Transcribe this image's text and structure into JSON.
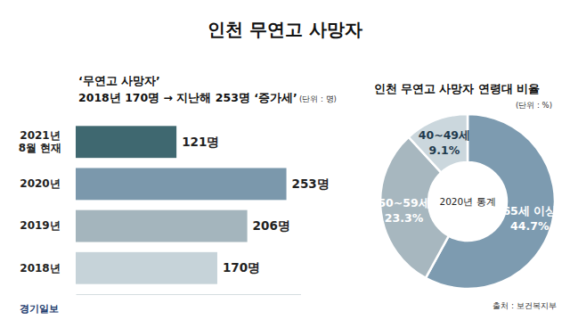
{
  "title": "인천 무연고 사망자",
  "source": "출처 : 보건복지부",
  "credit": "경기일보",
  "chart_data": [
    {
      "type": "bar",
      "orientation": "horizontal",
      "title": "‘무연고 사망자’",
      "subtitle": "2018년 170명 → 지난해 253명 ‘증가세’",
      "annotation": "(단위 : 명)",
      "categories": [
        "2021년\n8월 현재",
        "2020년",
        "2019년",
        "2018년"
      ],
      "values": [
        121,
        253,
        206,
        170
      ],
      "value_labels": [
        "121명",
        "253명",
        "206명",
        "170명"
      ],
      "colors": [
        "#3f6870",
        "#7b98ac",
        "#a4b5bd",
        "#c6d3d9"
      ],
      "xlim": [
        0,
        270
      ],
      "xticks": [],
      "data_labels": true,
      "tick_labels": "y",
      "grid": false
    },
    {
      "type": "pie",
      "title": "인천 무연고 사망자 연령대 비율",
      "subtitle": "(단위 : %)",
      "annotation": "2020년 통계",
      "categories": [
        "65세 이상",
        "50~59세",
        "40~49세"
      ],
      "values": [
        44.7,
        23.3,
        9.1
      ],
      "value_labels": [
        "44.7%",
        "23.3%",
        "9.1%"
      ],
      "colors": [
        "#7d9bb0",
        "#a7b7bf",
        "#cbd7dd"
      ],
      "data_labels": true
    }
  ]
}
